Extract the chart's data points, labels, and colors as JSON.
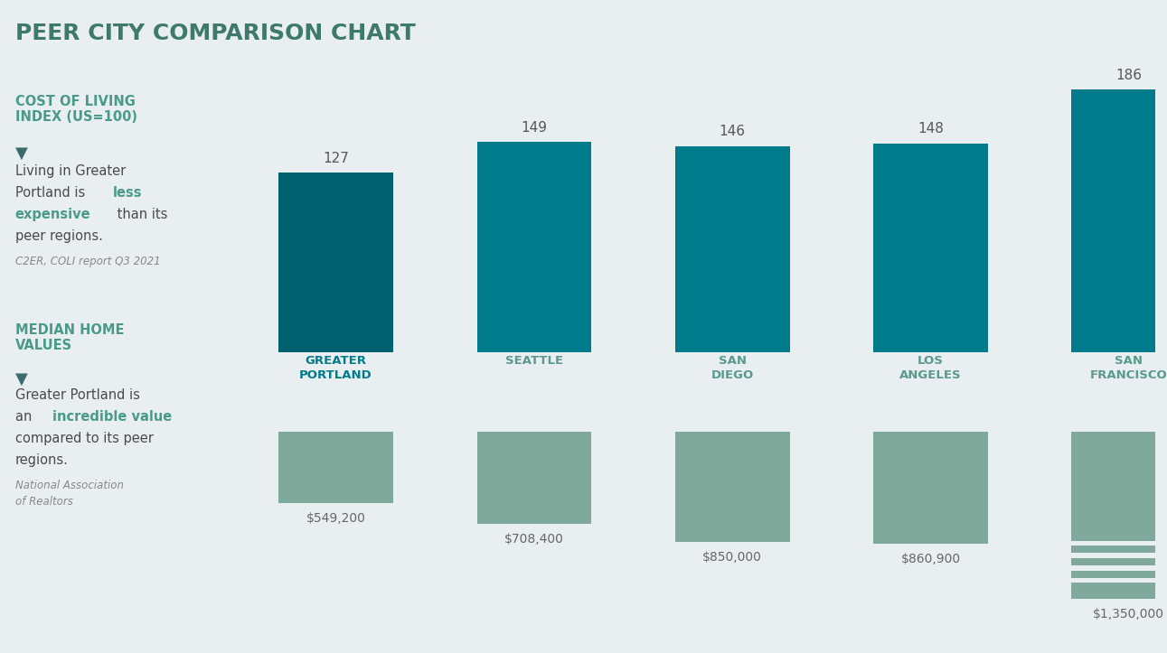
{
  "title": "PEER CITY COMPARISON CHART",
  "background_color": "#e9eef1",
  "cities": [
    "GREATER\nPORTLAND",
    "SEATTLE",
    "SAN\nDIEGO",
    "LOS\nANGELES",
    "SAN\nFRANCISCO"
  ],
  "coli_values": [
    127,
    149,
    146,
    148,
    186
  ],
  "coli_color": "#007b8c",
  "portland_coli_color": "#006070",
  "home_values": [
    549200,
    708400,
    850000,
    860900,
    1350000
  ],
  "home_color": "#7fa99b",
  "home_labels": [
    "$549,200",
    "$708,400",
    "$850,000",
    "$860,900",
    "$1,350,000"
  ],
  "coli_labels": [
    "127",
    "149",
    "146",
    "148",
    "186"
  ],
  "section1_title": "COST OF LIVING\nINDEX (US=100)",
  "section1_source": "C2ER, COLI report Q3 2021",
  "section2_title": "MEDIAN HOME\nVALUES",
  "section2_source": "National Association\nof Realtors",
  "section_title_color": "#4a9a8a",
  "highlight_color": "#4a9a8a",
  "normal_text_color": "#4a4a4a",
  "source_text_color": "#888888",
  "title_color": "#3d7a6a",
  "portland_label_color": "#007b8c",
  "other_label_color": "#5a9a8a",
  "value_label_color": "#666666",
  "coli_label_color": "#555555",
  "arrow_color": "#3d6b6b"
}
